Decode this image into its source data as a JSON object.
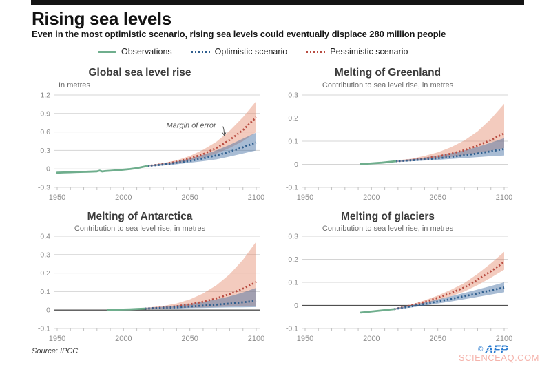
{
  "header": {
    "title": "Rising sea levels",
    "subtitle": "Even in the most optimistic scenario, rising sea levels could eventually displace 280 million people"
  },
  "legend": [
    {
      "label": "Observations",
      "style": "solid",
      "color": "#6fae8d"
    },
    {
      "label": "Optimistic scenario",
      "style": "dotted",
      "color": "#2f5f8f"
    },
    {
      "label": "Pessimistic scenario",
      "style": "dotted",
      "color": "#b84c41"
    }
  ],
  "colors": {
    "observations": "#6fae8d",
    "optimistic": "#2f5f8f",
    "pessimistic": "#b84c41",
    "optimistic_band": "rgba(62,106,160,0.45)",
    "pessimistic_band": "rgba(226,130,100,0.42)",
    "grid": "#d4d4d4",
    "zero_line_dark": "#4f4f4f",
    "minor_tick": "#c2c2c2",
    "axis_text": "#8b8b8b",
    "afp_blue": "#2b7cd0",
    "watermark_pink": "#f4aca4"
  },
  "footer": {
    "source": "Source: IPCC",
    "copyright": "©",
    "credit": "AFP",
    "watermark": "SCIENCEAQ.COM"
  },
  "chart_data": [
    {
      "type": "line",
      "title": "Global sea level rise",
      "subtitle": "In metres",
      "subtitle_align": "left",
      "xlim": [
        1950,
        2100
      ],
      "ylim": [
        -0.3,
        1.2
      ],
      "xticks": [
        1950,
        2000,
        2050,
        2100
      ],
      "yticks": [
        -0.3,
        0,
        0.3,
        0.6,
        0.9,
        1.2
      ],
      "minor_tick_step": 10,
      "grid": true,
      "zero_line": "light",
      "legend_position": "top",
      "annotation": {
        "text": "Margin of error",
        "tx": 2051,
        "ty": 0.7,
        "ax": 2076,
        "ay": 0.54
      },
      "series": [
        {
          "name": "Observations",
          "color_key": "observations",
          "style": "solid",
          "x": [
            1950,
            1955,
            1960,
            1965,
            1970,
            1975,
            1980,
            1982,
            1984,
            1986,
            1990,
            1995,
            2000,
            2005,
            2010,
            2014,
            2018
          ],
          "y": [
            -0.062,
            -0.058,
            -0.055,
            -0.05,
            -0.048,
            -0.045,
            -0.04,
            -0.028,
            -0.042,
            -0.036,
            -0.03,
            -0.022,
            -0.012,
            -0.002,
            0.012,
            0.03,
            0.048
          ]
        },
        {
          "name": "Optimistic scenario",
          "color_key": "optimistic",
          "style": "dotted",
          "x": [
            2018,
            2030,
            2040,
            2050,
            2060,
            2070,
            2080,
            2090,
            2100
          ],
          "y": [
            0.048,
            0.07,
            0.1,
            0.13,
            0.17,
            0.22,
            0.28,
            0.35,
            0.43
          ],
          "band": {
            "upper": [
              0.055,
              0.09,
              0.12,
              0.17,
              0.23,
              0.3,
              0.39,
              0.49,
              0.59
            ],
            "lower": [
              0.04,
              0.055,
              0.075,
              0.1,
              0.125,
              0.155,
              0.2,
              0.25,
              0.3
            ]
          }
        },
        {
          "name": "Pessimistic scenario",
          "color_key": "pessimistic",
          "style": "dotted",
          "x": [
            2018,
            2030,
            2040,
            2050,
            2060,
            2070,
            2080,
            2090,
            2100
          ],
          "y": [
            0.048,
            0.08,
            0.115,
            0.17,
            0.24,
            0.34,
            0.47,
            0.63,
            0.84
          ],
          "band": {
            "upper": [
              0.055,
              0.095,
              0.14,
              0.21,
              0.31,
              0.44,
              0.62,
              0.84,
              1.1
            ],
            "lower": [
              0.04,
              0.06,
              0.09,
              0.13,
              0.18,
              0.25,
              0.34,
              0.45,
              0.6
            ]
          }
        }
      ]
    },
    {
      "type": "line",
      "title": "Melting of Greenland",
      "subtitle": "Contribution to sea level rise, in metres",
      "subtitle_align": "center",
      "xlim": [
        1950,
        2100
      ],
      "ylim": [
        -0.1,
        0.3
      ],
      "xticks": [
        1950,
        2000,
        2050,
        2100
      ],
      "yticks": [
        -0.1,
        0,
        0.1,
        0.2,
        0.3
      ],
      "minor_tick_step": 10,
      "grid": true,
      "zero_line": "light",
      "legend_position": "top",
      "series": [
        {
          "name": "Observations",
          "color_key": "observations",
          "style": "solid",
          "x": [
            1992,
            1998,
            2003,
            2008,
            2013,
            2018
          ],
          "y": [
            0.001,
            0.003,
            0.005,
            0.007,
            0.01,
            0.013
          ]
        },
        {
          "name": "Optimistic scenario",
          "color_key": "optimistic",
          "style": "dotted",
          "x": [
            2018,
            2030,
            2040,
            2050,
            2060,
            2070,
            2080,
            2090,
            2100
          ],
          "y": [
            0.013,
            0.017,
            0.021,
            0.026,
            0.032,
            0.039,
            0.047,
            0.056,
            0.066
          ],
          "band": {
            "upper": [
              0.016,
              0.022,
              0.029,
              0.038,
              0.048,
              0.06,
              0.075,
              0.093,
              0.113
            ],
            "lower": [
              0.01,
              0.013,
              0.016,
              0.019,
              0.023,
              0.027,
              0.031,
              0.035,
              0.038
            ]
          }
        },
        {
          "name": "Pessimistic scenario",
          "color_key": "pessimistic",
          "style": "dotted",
          "x": [
            2018,
            2030,
            2040,
            2050,
            2060,
            2070,
            2080,
            2090,
            2100
          ],
          "y": [
            0.013,
            0.018,
            0.025,
            0.034,
            0.046,
            0.061,
            0.081,
            0.105,
            0.134
          ],
          "band": {
            "upper": [
              0.016,
              0.024,
              0.036,
              0.052,
              0.074,
              0.103,
              0.143,
              0.196,
              0.262
            ],
            "lower": [
              0.01,
              0.014,
              0.019,
              0.025,
              0.032,
              0.04,
              0.049,
              0.059,
              0.07
            ]
          }
        }
      ]
    },
    {
      "type": "line",
      "title": "Melting of Antarctica",
      "subtitle": "Contribution to sea level rise, in metres",
      "subtitle_align": "center",
      "xlim": [
        1950,
        2100
      ],
      "ylim": [
        -0.1,
        0.4
      ],
      "xticks": [
        1950,
        2000,
        2050,
        2100
      ],
      "yticks": [
        -0.1,
        0,
        0.1,
        0.2,
        0.3,
        0.4
      ],
      "minor_tick_step": 10,
      "grid": true,
      "zero_line": "dark",
      "legend_position": "top",
      "series": [
        {
          "name": "Observations",
          "color_key": "observations",
          "style": "solid",
          "x": [
            1988,
            1994,
            2000,
            2005,
            2010,
            2016
          ],
          "y": [
            0.001,
            0.002,
            0.003,
            0.004,
            0.006,
            0.008
          ]
        },
        {
          "name": "Optimistic scenario",
          "color_key": "optimistic",
          "style": "dotted",
          "x": [
            2016,
            2030,
            2040,
            2050,
            2060,
            2070,
            2080,
            2090,
            2100
          ],
          "y": [
            0.008,
            0.012,
            0.015,
            0.019,
            0.024,
            0.029,
            0.035,
            0.042,
            0.05
          ],
          "band": {
            "upper": [
              0.012,
              0.018,
              0.025,
              0.034,
              0.045,
              0.058,
              0.074,
              0.095,
              0.12
            ],
            "lower": [
              0.005,
              0.007,
              0.008,
              0.01,
              0.011,
              0.013,
              0.014,
              0.015,
              0.016
            ]
          }
        },
        {
          "name": "Pessimistic scenario",
          "color_key": "pessimistic",
          "style": "dotted",
          "x": [
            2016,
            2030,
            2040,
            2050,
            2060,
            2070,
            2080,
            2090,
            2100
          ],
          "y": [
            0.008,
            0.014,
            0.021,
            0.031,
            0.045,
            0.063,
            0.087,
            0.116,
            0.152
          ],
          "band": {
            "upper": [
              0.012,
              0.022,
              0.036,
              0.058,
              0.09,
              0.134,
              0.194,
              0.272,
              0.37
            ],
            "lower": [
              0.005,
              0.008,
              0.01,
              0.013,
              0.015,
              0.017,
              0.019,
              0.02,
              0.021
            ]
          }
        }
      ]
    },
    {
      "type": "line",
      "title": "Melting of glaciers",
      "subtitle": "Contribution to sea level rise, in metres",
      "subtitle_align": "center",
      "xlim": [
        1950,
        2100
      ],
      "ylim": [
        -0.1,
        0.3
      ],
      "xticks": [
        1950,
        2000,
        2050,
        2100
      ],
      "yticks": [
        -0.1,
        0,
        0.1,
        0.2,
        0.3
      ],
      "minor_tick_step": 10,
      "grid": true,
      "zero_line": "dark",
      "legend_position": "top",
      "series": [
        {
          "name": "Observations",
          "color_key": "observations",
          "style": "solid",
          "x": [
            1992,
            1997,
            2002,
            2007,
            2012,
            2017
          ],
          "y": [
            -0.031,
            -0.028,
            -0.025,
            -0.022,
            -0.019,
            -0.016
          ]
        },
        {
          "name": "Optimistic scenario",
          "color_key": "optimistic",
          "style": "dotted",
          "x": [
            2017,
            2030,
            2040,
            2050,
            2060,
            2070,
            2080,
            2090,
            2100
          ],
          "y": [
            -0.016,
            -0.004,
            0.006,
            0.017,
            0.028,
            0.04,
            0.052,
            0.065,
            0.078
          ],
          "band": {
            "upper": [
              -0.013,
              0.001,
              0.013,
              0.026,
              0.04,
              0.054,
              0.069,
              0.084,
              0.1
            ],
            "lower": [
              -0.019,
              -0.009,
              -0.001,
              0.008,
              0.017,
              0.027,
              0.037,
              0.047,
              0.057
            ]
          }
        },
        {
          "name": "Pessimistic scenario",
          "color_key": "pessimistic",
          "style": "dotted",
          "x": [
            2017,
            2030,
            2040,
            2050,
            2060,
            2070,
            2080,
            2090,
            2100
          ],
          "y": [
            -0.016,
            0.0,
            0.015,
            0.033,
            0.054,
            0.078,
            0.112,
            0.148,
            0.188
          ],
          "band": {
            "upper": [
              -0.013,
              0.004,
              0.022,
              0.043,
              0.068,
              0.097,
              0.137,
              0.182,
              0.232
            ],
            "lower": [
              -0.019,
              -0.004,
              0.008,
              0.023,
              0.04,
              0.06,
              0.088,
              0.12,
              0.155
            ]
          }
        }
      ]
    }
  ]
}
